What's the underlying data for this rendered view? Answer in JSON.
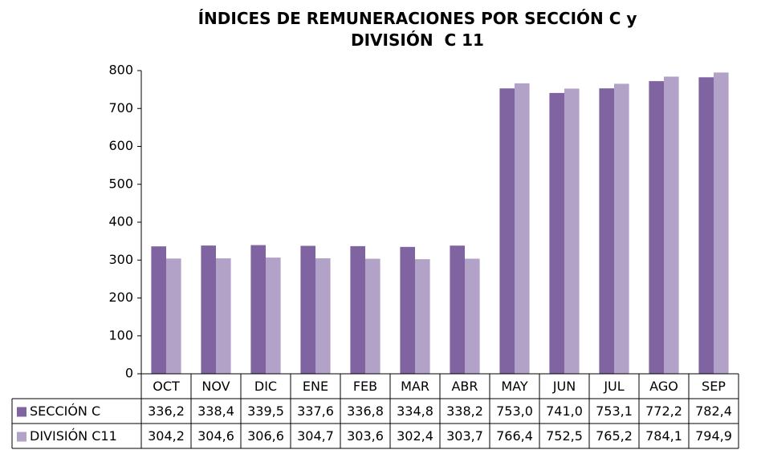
{
  "chart_data": {
    "type": "bar",
    "title": "ÍNDICES DE REMUNERACIONES POR SECCIÓN C y DIVISIÓN  C 11",
    "categories": [
      "OCT",
      "NOV",
      "DIC",
      "ENE",
      "FEB",
      "MAR",
      "ABR",
      "MAY",
      "JUN",
      "JUL",
      "AGO",
      "SEP"
    ],
    "series": [
      {
        "name": "SECCIÓN C",
        "color": "#8064a2",
        "values": [
          336.2,
          338.4,
          339.5,
          337.6,
          336.8,
          334.8,
          338.2,
          753.0,
          741.0,
          753.1,
          772.2,
          782.4
        ],
        "value_labels": [
          "336,2",
          "338,4",
          "339,5",
          "337,6",
          "336,8",
          "334,8",
          "338,2",
          "753,0",
          "741,0",
          "753,1",
          "772,2",
          "782,4"
        ]
      },
      {
        "name": "DIVISIÓN C11",
        "color": "#b3a2c7",
        "values": [
          304.2,
          304.6,
          306.6,
          304.7,
          303.6,
          302.4,
          303.7,
          766.4,
          752.5,
          765.2,
          784.1,
          794.9
        ],
        "value_labels": [
          "304,2",
          "304,6",
          "306,6",
          "304,7",
          "303,6",
          "302,4",
          "303,7",
          "766,4",
          "752,5",
          "765,2",
          "784,1",
          "794,9"
        ]
      }
    ],
    "ylim": [
      0,
      800
    ],
    "yticks": [
      0,
      100,
      200,
      300,
      400,
      500,
      600,
      700,
      800
    ],
    "grid": false
  }
}
